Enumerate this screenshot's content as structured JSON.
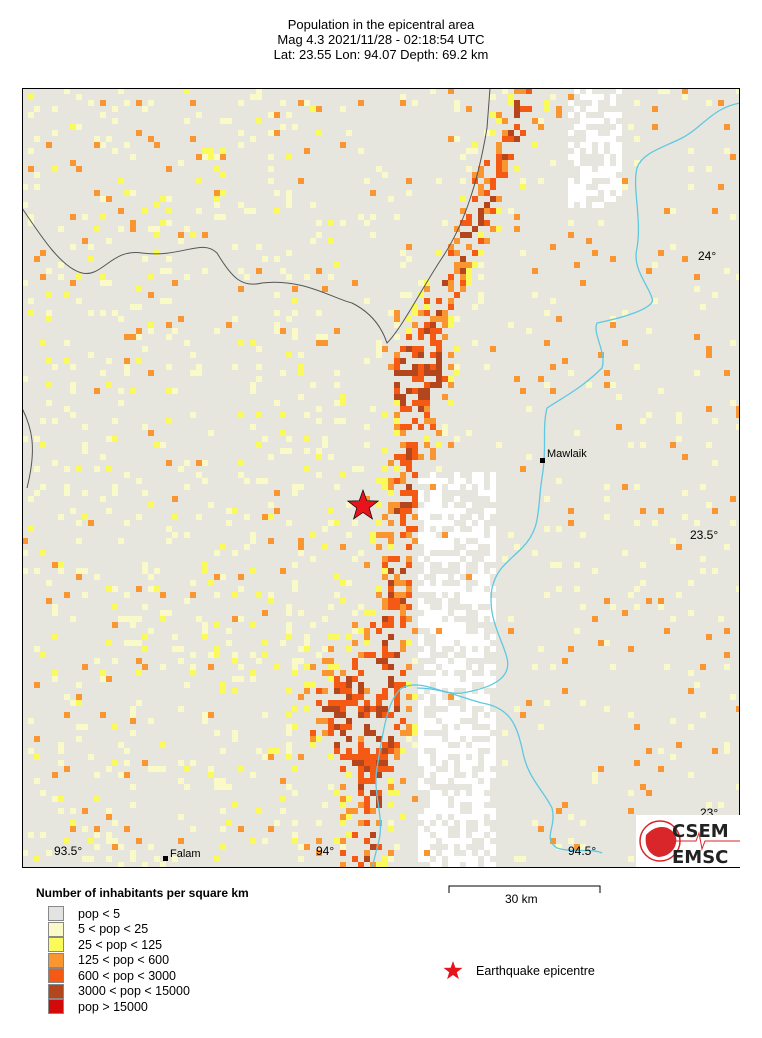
{
  "header": {
    "title": "Population in the epicentral area",
    "event_line": "Mag 4.3  2021/11/28 - 02:18:54 UTC",
    "location_line": "Lat: 23.55    Lon:  94.07     Depth:  69.2 km"
  },
  "map": {
    "lat_labels": [
      "24°",
      "23.5°",
      "23°"
    ],
    "lon_labels": [
      "93.5°",
      "94°",
      "94.5°"
    ],
    "places": [
      {
        "name": "Mawlaik"
      },
      {
        "name": "Falam"
      }
    ],
    "epicentre": {
      "lat": 23.55,
      "lon": 94.07
    },
    "scale_bar": "30 km",
    "colors": {
      "background": "#e6e6df",
      "river": "#5fc8e0",
      "border": "#555555",
      "epicentre": "#e8141c"
    }
  },
  "legend": {
    "title": "Number of inhabitants per square km",
    "classes": [
      {
        "label": "pop < 5",
        "color": "#e3e3e1"
      },
      {
        "label": "5 < pop < 25",
        "color": "#fafac8"
      },
      {
        "label": "25 < pop < 125",
        "color": "#fafa5a"
      },
      {
        "label": "125 < pop < 600",
        "color": "#fa9632"
      },
      {
        "label": "600 < pop < 3000",
        "color": "#f55a14"
      },
      {
        "label": "3000 < pop < 15000",
        "color": "#b4461e"
      },
      {
        "label": "pop > 15000",
        "color": "#d20a0a"
      }
    ],
    "epicentre_label": "Earthquake epicentre"
  },
  "logo": {
    "text_top": "CSEM",
    "text_bottom": "EMSC"
  }
}
